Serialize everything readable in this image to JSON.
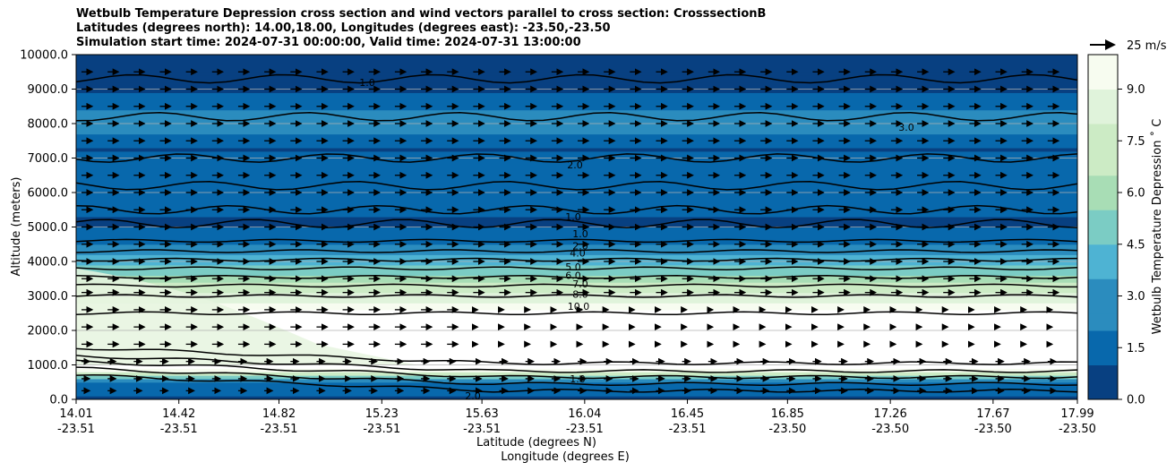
{
  "chart_data": {
    "type": "contour",
    "title_lines": [
      "Wetbulb Temperature Depression cross section and wind vectors parallel to cross section: CrosssectionB",
      "Latitudes (degrees north): 14.00,18.00, Longitudes (degrees east): -23.50,-23.50",
      "Simulation start time: 2024-07-31 00:00:00, Valid time: 2024-07-31 13:00:00"
    ],
    "ylabel": "Altitude (meters)",
    "xlabel_lines": [
      "Latitude (degrees N)",
      "Longitude (degrees E)"
    ],
    "ylim": [
      0,
      10000
    ],
    "y_ticks": [
      "0.0",
      "1000.0",
      "2000.0",
      "3000.0",
      "4000.0",
      "5000.0",
      "6000.0",
      "7000.0",
      "8000.0",
      "9000.0",
      "10000.0"
    ],
    "x_ticks": [
      {
        "lat": "14.01",
        "lon": "-23.51",
        "pos": 0.0
      },
      {
        "lat": "14.42",
        "lon": "-23.51",
        "pos": 0.1026
      },
      {
        "lat": "14.82",
        "lon": "-23.51",
        "pos": 0.2026
      },
      {
        "lat": "15.23",
        "lon": "-23.51",
        "pos": 0.3053
      },
      {
        "lat": "15.63",
        "lon": "-23.51",
        "pos": 0.4053
      },
      {
        "lat": "16.04",
        "lon": "-23.51",
        "pos": 0.5079
      },
      {
        "lat": "16.45",
        "lon": "-23.51",
        "pos": 0.6105
      },
      {
        "lat": "16.85",
        "lon": "-23.50",
        "pos": 0.7105
      },
      {
        "lat": "17.26",
        "lon": "-23.50",
        "pos": 0.8132
      },
      {
        "lat": "17.67",
        "lon": "-23.50",
        "pos": 0.9158
      },
      {
        "lat": "17.99",
        "lon": "-23.50",
        "pos": 1.0
      }
    ],
    "colorbar": {
      "label": "Wetbulb Temperature Depression $^\\circ$C",
      "label_display": "Wetbulb Temperature Depression ˚ C",
      "min": 0.0,
      "max": 10.0,
      "ticks": [
        "0.0",
        "1.5",
        "3.0",
        "4.5",
        "6.0",
        "7.5",
        "9.0"
      ],
      "tick_values": [
        0,
        1.5,
        3,
        4.5,
        6,
        7.5,
        9
      ],
      "colors": [
        "#084081",
        "#0868ac",
        "#2b8cbe",
        "#4eb3d3",
        "#7bccc4",
        "#a8ddb5",
        "#ccebc5",
        "#e0f3db",
        "#f7fcf0"
      ]
    },
    "wind_key": {
      "label": "25 m/s"
    },
    "contour_labels": [
      "1.0",
      "2.0",
      "3.0",
      "4.0",
      "5.0",
      "6.0",
      "7.0",
      "8.0",
      "10.0"
    ],
    "profile_depression_by_altitude": [
      {
        "alt": 0,
        "value": 1.0
      },
      {
        "alt": 500,
        "value": 2.0
      },
      {
        "alt": 900,
        "value": 10.0
      },
      {
        "alt": 2000,
        "value": 10.0
      },
      {
        "alt": 2500,
        "value": 10.0
      },
      {
        "alt": 3000,
        "value": 8.0
      },
      {
        "alt": 3300,
        "value": 7.0
      },
      {
        "alt": 3500,
        "value": 6.0
      },
      {
        "alt": 3800,
        "value": 5.0
      },
      {
        "alt": 4000,
        "value": 4.0
      },
      {
        "alt": 4300,
        "value": 3.0
      },
      {
        "alt": 4600,
        "value": 2.0
      },
      {
        "alt": 5100,
        "value": 1.0
      },
      {
        "alt": 6500,
        "value": 2.0
      },
      {
        "alt": 7300,
        "value": 1.0
      },
      {
        "alt": 8000,
        "value": 3.0
      },
      {
        "alt": 9000,
        "value": 1.0
      },
      {
        "alt": 10000,
        "value": 1.0
      }
    ]
  }
}
